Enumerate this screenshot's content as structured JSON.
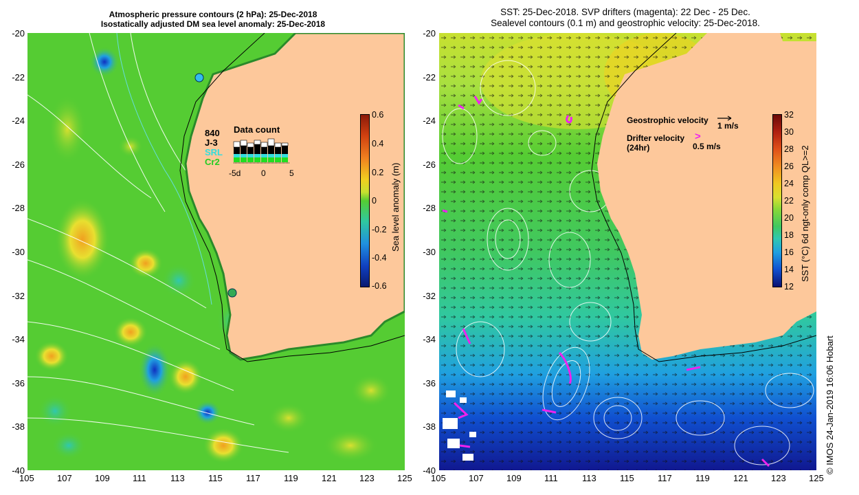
{
  "left": {
    "title_line1": "Atmospheric pressure contours (2 hPa): 25-Dec-2018",
    "title_line2": "Isostatically adjusted DM sea level anomaly: 25-Dec-2018",
    "x_ticks": [
      "105",
      "107",
      "109",
      "111",
      "113",
      "115",
      "117",
      "119",
      "121",
      "123",
      "125"
    ],
    "y_ticks": [
      "-20",
      "-22",
      "-24",
      "-26",
      "-28",
      "-30",
      "-32",
      "-34",
      "-36",
      "-38",
      "-40"
    ],
    "colorbar_ticks": [
      "0.6",
      "0.4",
      "0.2",
      "0",
      "-0.2",
      "-0.4",
      "-0.6"
    ],
    "colorbar_label": "Sea level anomaly (m)",
    "data_count_title": "Data count",
    "data_count_axis": [
      "-5d",
      "0",
      "5"
    ],
    "missions": [
      {
        "name": "840",
        "color": "#000000"
      },
      {
        "name": "J-3",
        "color": "#000000"
      },
      {
        "name": "SRL",
        "color": "#33dddd"
      },
      {
        "name": "Cr2",
        "color": "#22cc22"
      }
    ]
  },
  "right": {
    "title_line1": "SST: 25-Dec-2018. SVP drifters (magenta): 22 Dec - 25 Dec.",
    "title_line2": "Sealevel contours (0.1 m) and geostrophic velocity: 25-Dec-2018.",
    "x_ticks": [
      "105",
      "107",
      "109",
      "111",
      "113",
      "115",
      "117",
      "119",
      "121",
      "123",
      "125"
    ],
    "y_ticks": [
      "-20",
      "-22",
      "-24",
      "-26",
      "-28",
      "-30",
      "-32",
      "-34",
      "-36",
      "-38",
      "-40"
    ],
    "colorbar_ticks": [
      "32",
      "30",
      "28",
      "26",
      "24",
      "22",
      "20",
      "18",
      "16",
      "14",
      "12"
    ],
    "colorbar_label": "SST (°C) 6d ngt-only comp QL>=2",
    "legend_geo": "Geostrophic velocity",
    "legend_geo_scale": "1 m/s",
    "legend_drifter": "Drifter velocity",
    "legend_drifter_sub": "(24hr)",
    "legend_drifter_scale": "0.5 m/s",
    "legend_drifter_glyph": ">"
  },
  "credit": "© IMOS 24-Jan-2019 16:06 Hobart",
  "colors": {
    "land": "#fdc89b",
    "ocean_green": "#55cc33",
    "ocean_yellow": "#e8e030",
    "sst_deep": "#1020a0",
    "drifter": "#ee22ee"
  }
}
